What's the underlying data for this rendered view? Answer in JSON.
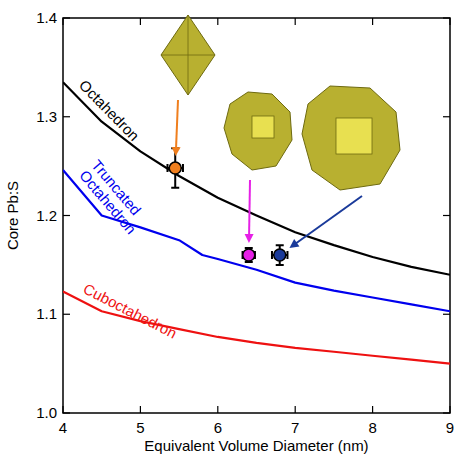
{
  "chart_data": {
    "type": "line",
    "x_label": "Equivalent Volume Diameter (nm)",
    "y_label": "Core Pb:S",
    "xlim": [
      4,
      9
    ],
    "xticks": [
      4,
      5,
      6,
      7,
      8,
      9
    ],
    "ylim": [
      1,
      1.4
    ],
    "yticks": [
      {
        "value": 1,
        "label": "1.0"
      },
      1.1,
      1.2,
      1.3,
      1.4
    ],
    "grid": false,
    "series": [
      {
        "name": "Octahedron",
        "color": "#000000",
        "type": "line",
        "x": [
          4,
          4.5,
          5,
          5.5,
          6,
          6.5,
          7,
          7.5,
          8,
          8.5,
          9
        ],
        "values": [
          1.335,
          1.295,
          1.265,
          1.24,
          1.218,
          1.2,
          1.183,
          1.17,
          1.158,
          1.148,
          1.14
        ]
      },
      {
        "name": "Truncated Octahedron",
        "color": "#0000ee",
        "type": "line",
        "x": [
          4,
          4.5,
          5,
          5.5,
          5.8,
          6,
          6.5,
          7,
          7.5,
          8,
          8.5,
          9
        ],
        "values": [
          1.246,
          1.2,
          1.188,
          1.175,
          1.16,
          1.156,
          1.145,
          1.132,
          1.124,
          1.117,
          1.11,
          1.103
        ]
      },
      {
        "name": "Cuboctahedron",
        "color": "#ee1111",
        "type": "line",
        "x": [
          4,
          4.5,
          5,
          5.5,
          6,
          6.5,
          7,
          7.5,
          8,
          8.5,
          9
        ],
        "values": [
          1.123,
          1.103,
          1.093,
          1.085,
          1.077,
          1.071,
          1.066,
          1.062,
          1.058,
          1.054,
          1.05
        ]
      },
      {
        "type": "scatter",
        "marker": "circle",
        "x": [
          5.45,
          6.4,
          6.8
        ],
        "values": [
          1.248,
          1.16,
          1.16
        ],
        "colors": [
          "#f07f1e",
          "#e620e6",
          "#1a3a9a"
        ],
        "x_error": [
          0.1,
          0.08,
          0.1
        ],
        "y_error": [
          0.02,
          0.007,
          0.01
        ]
      }
    ]
  }
}
